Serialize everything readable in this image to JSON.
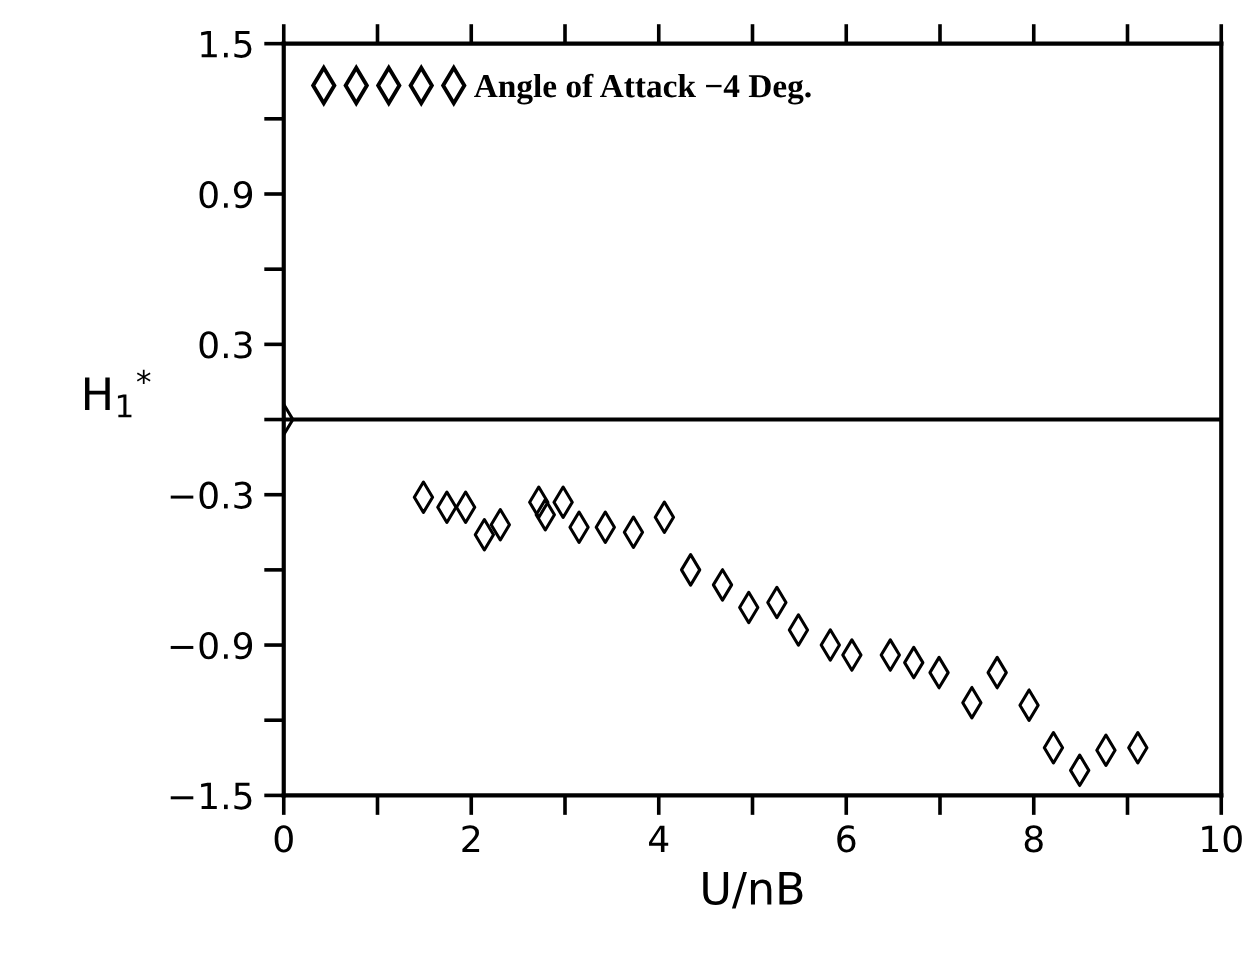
{
  "chart_data": {
    "type": "scatter",
    "xlabel": "U/nB",
    "ylabel": "H$_{1}$$^{*}$",
    "series": [
      {
        "name": "Angle of Attack −4 Deg.",
        "color": "#000000",
        "x": [
          0,
          1.49,
          1.74,
          1.94,
          2.14,
          2.31,
          2.72,
          2.79,
          2.98,
          3.15,
          3.43,
          3.73,
          4.06,
          4.34,
          4.68,
          4.96,
          5.26,
          5.49,
          5.83,
          6.06,
          6.47,
          6.72,
          6.99,
          7.34,
          7.61,
          7.95,
          8.21,
          8.49,
          8.77,
          9.11
        ],
        "values": [
          0,
          -0.31,
          -0.35,
          -0.35,
          -0.46,
          -0.42,
          -0.33,
          -0.38,
          -0.33,
          -0.43,
          -0.43,
          -0.45,
          -0.39,
          -0.6,
          -0.66,
          -0.75,
          -0.73,
          -0.84,
          -0.9,
          -0.94,
          -0.94,
          -0.97,
          -1.01,
          -1.13,
          -1.01,
          -1.14,
          -1.31,
          -1.4,
          -1.32,
          -1.31
        ]
      }
    ],
    "marker": "diamond",
    "legend": "top left",
    "xlim": [
      0,
      10
    ],
    "ylim": [
      -1.5,
      1.5
    ],
    "xticks": [
      0,
      {
        "value": 1,
        "label": null
      },
      2,
      {
        "value": 3,
        "label": null
      },
      4,
      {
        "value": 5,
        "label": null
      },
      6,
      {
        "value": 7,
        "label": null
      },
      8,
      {
        "value": 9,
        "label": null
      },
      10
    ],
    "yticks": [
      {
        "value": -1.5,
        "label": "−1.5"
      },
      {
        "value": -1.2,
        "label": null
      },
      {
        "value": -0.9,
        "label": "−0.9"
      },
      {
        "value": -0.6,
        "label": null
      },
      {
        "value": -0.3,
        "label": "−0.3"
      },
      {
        "value": 0,
        "label": null
      },
      0.3,
      {
        "value": 0.6,
        "label": null
      },
      0.9,
      {
        "value": 1.2,
        "label": null
      },
      1.5
    ],
    "ref_lines": [
      {
        "axis": "y",
        "value": 0,
        "color": "#000000"
      }
    ],
    "grid": false
  }
}
